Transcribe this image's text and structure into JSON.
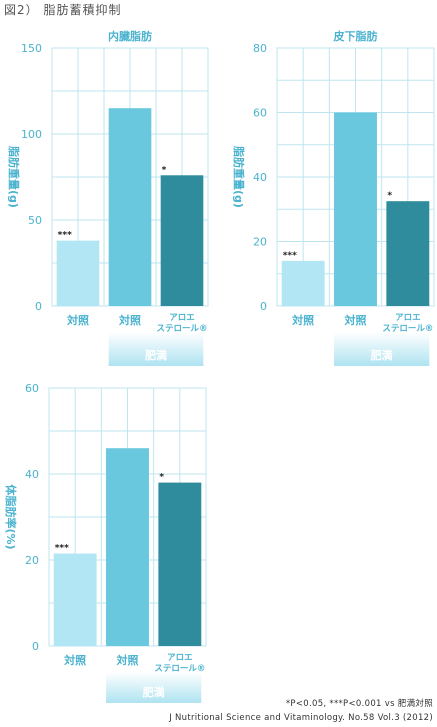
{
  "figure": {
    "title": "図2） 脂肪蓄積抑制",
    "footnote": "*P<0.05, ***P<0.001 vs 肥満対照",
    "citation": "J Nutritional Science and Vitaminology. No.58 Vol.3 (2012)"
  },
  "colors": {
    "lean": "#b3e6f4",
    "obese_control": "#69c8de",
    "aloe": "#2e8c9c",
    "axis_text": "#4bb3cf",
    "grid": "#bfe6f0",
    "group_band_top": "#ffffff",
    "group_band_bottom": "#aee3f1"
  },
  "chart_data": [
    {
      "type": "bar",
      "title": "内臓脂肪",
      "ylabel": "脂肪重量(g)",
      "ylim": [
        0,
        150
      ],
      "yticks": [
        0,
        50,
        100,
        150
      ],
      "categories": [
        "対照",
        "対照",
        "アロエ\nステロール®"
      ],
      "values": [
        38,
        115,
        76
      ],
      "significance": [
        "***",
        "",
        "*"
      ],
      "group_label": "肥満"
    },
    {
      "type": "bar",
      "title": "皮下脂肪",
      "ylabel": "脂肪重量(g)",
      "ylim": [
        0,
        80
      ],
      "yticks": [
        0,
        20,
        40,
        60,
        80
      ],
      "categories": [
        "対照",
        "対照",
        "アロエ\nステロール®"
      ],
      "values": [
        14,
        60,
        32.5
      ],
      "significance": [
        "***",
        "",
        "*"
      ],
      "group_label": "肥満"
    },
    {
      "type": "bar",
      "title": "",
      "ylabel": "体脂肪率(%)",
      "ylim": [
        0,
        60
      ],
      "yticks": [
        0,
        20,
        40,
        60
      ],
      "categories": [
        "対照",
        "対照",
        "アロエ\nステロール®"
      ],
      "values": [
        21.5,
        46,
        38
      ],
      "significance": [
        "***",
        "",
        "*"
      ],
      "group_label": "肥満"
    }
  ]
}
